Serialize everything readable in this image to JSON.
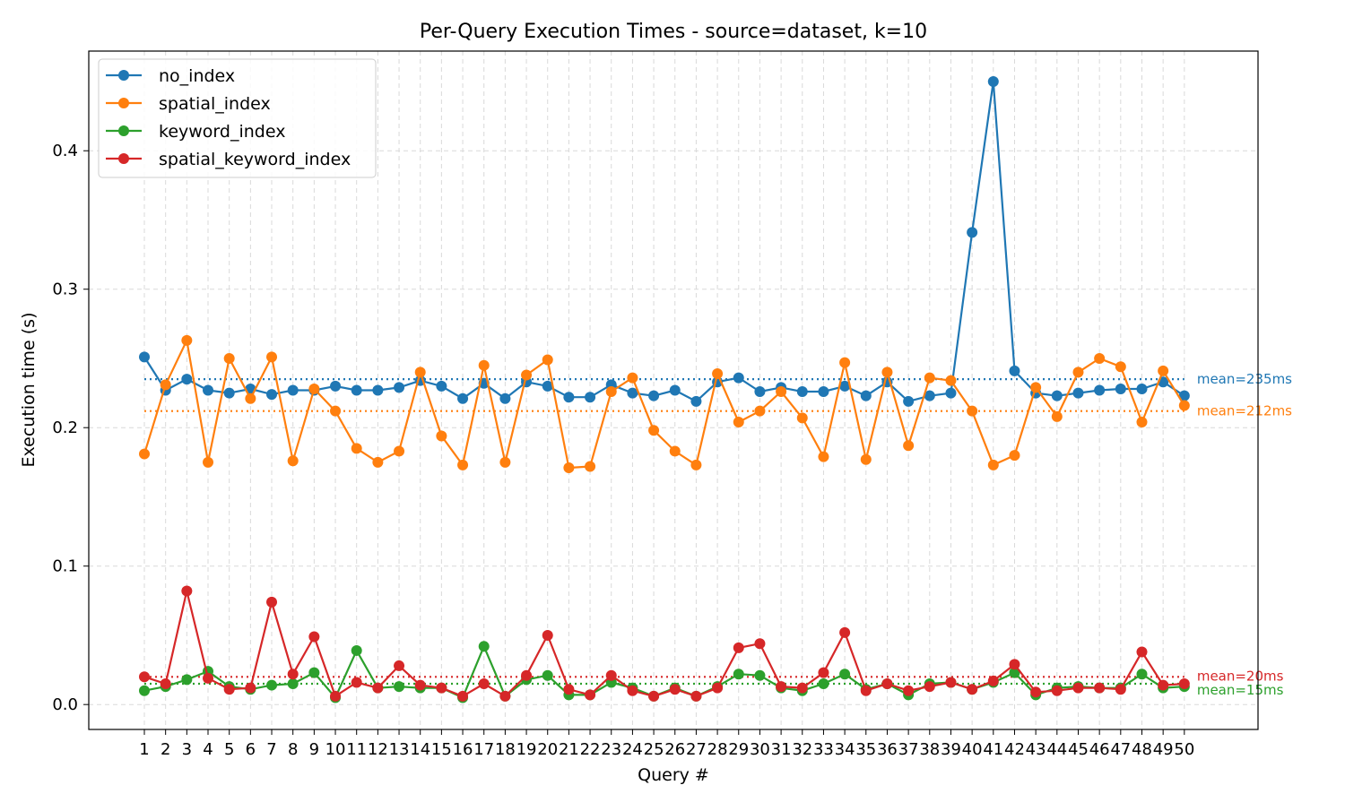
{
  "chart_data": {
    "type": "line",
    "title": "Per-Query Execution Times - source=dataset, k=10",
    "xlabel": "Query #",
    "ylabel": "Execution time (s)",
    "categories": [
      "1",
      "2",
      "3",
      "4",
      "5",
      "6",
      "7",
      "8",
      "9",
      "10",
      "11",
      "12",
      "13",
      "14",
      "15",
      "16",
      "17",
      "18",
      "19",
      "20",
      "21",
      "22",
      "23",
      "24",
      "25",
      "26",
      "27",
      "28",
      "29",
      "30",
      "31",
      "32",
      "33",
      "34",
      "35",
      "36",
      "37",
      "38",
      "39",
      "40",
      "41",
      "42",
      "43",
      "44",
      "45",
      "46",
      "47",
      "48",
      "49",
      "50"
    ],
    "yticks": [
      "0.0",
      "0.1",
      "0.2",
      "0.3",
      "0.4"
    ],
    "ylim": [
      -0.018,
      0.472
    ],
    "grid": true,
    "legend_position": "top-left",
    "series": [
      {
        "name": "no_index",
        "color": "#1f77b4",
        "values": [
          0.251,
          0.227,
          0.235,
          0.227,
          0.225,
          0.228,
          0.224,
          0.227,
          0.227,
          0.23,
          0.227,
          0.227,
          0.229,
          0.234,
          0.23,
          0.221,
          0.232,
          0.221,
          0.233,
          0.23,
          0.222,
          0.222,
          0.231,
          0.225,
          0.223,
          0.227,
          0.219,
          0.233,
          0.236,
          0.226,
          0.229,
          0.226,
          0.226,
          0.23,
          0.223,
          0.233,
          0.219,
          0.223,
          0.225,
          0.341,
          0.45,
          0.241,
          0.225,
          0.223,
          0.225,
          0.227,
          0.228,
          0.228,
          0.233,
          0.223
        ],
        "mean_label": "mean=235ms",
        "mean": 0.235
      },
      {
        "name": "spatial_index",
        "color": "#ff7f0e",
        "values": [
          0.181,
          0.231,
          0.263,
          0.175,
          0.25,
          0.221,
          0.251,
          0.176,
          0.228,
          0.212,
          0.185,
          0.175,
          0.183,
          0.24,
          0.194,
          0.173,
          0.245,
          0.175,
          0.238,
          0.249,
          0.171,
          0.172,
          0.226,
          0.236,
          0.198,
          0.183,
          0.173,
          0.239,
          0.204,
          0.212,
          0.226,
          0.207,
          0.179,
          0.247,
          0.177,
          0.24,
          0.187,
          0.236,
          0.234,
          0.212,
          0.173,
          0.18,
          0.229,
          0.208,
          0.24,
          0.25,
          0.244,
          0.204,
          0.241,
          0.216
        ],
        "mean_label": "mean=212ms",
        "mean": 0.212
      },
      {
        "name": "keyword_index",
        "color": "#2ca02c",
        "values": [
          0.01,
          0.013,
          0.018,
          0.024,
          0.013,
          0.011,
          0.014,
          0.015,
          0.023,
          0.005,
          0.039,
          0.012,
          0.013,
          0.012,
          0.012,
          0.005,
          0.042,
          0.006,
          0.018,
          0.021,
          0.007,
          0.007,
          0.016,
          0.012,
          0.006,
          0.012,
          0.006,
          0.013,
          0.022,
          0.021,
          0.012,
          0.01,
          0.015,
          0.022,
          0.011,
          0.015,
          0.007,
          0.015,
          0.016,
          0.011,
          0.016,
          0.023,
          0.007,
          0.012,
          0.013,
          0.012,
          0.012,
          0.022,
          0.012,
          0.013
        ],
        "mean_label": "mean=15ms",
        "mean": 0.015
      },
      {
        "name": "spatial_keyword_index",
        "color": "#d62728",
        "values": [
          0.02,
          0.015,
          0.082,
          0.019,
          0.011,
          0.012,
          0.074,
          0.022,
          0.049,
          0.006,
          0.016,
          0.012,
          0.028,
          0.014,
          0.012,
          0.006,
          0.015,
          0.006,
          0.021,
          0.05,
          0.011,
          0.007,
          0.021,
          0.01,
          0.006,
          0.011,
          0.006,
          0.012,
          0.041,
          0.044,
          0.013,
          0.012,
          0.023,
          0.052,
          0.01,
          0.015,
          0.01,
          0.013,
          0.016,
          0.011,
          0.017,
          0.029,
          0.009,
          0.01,
          0.012,
          0.012,
          0.011,
          0.038,
          0.014,
          0.015
        ],
        "mean_label": "mean=20ms",
        "mean": 0.02
      }
    ]
  }
}
